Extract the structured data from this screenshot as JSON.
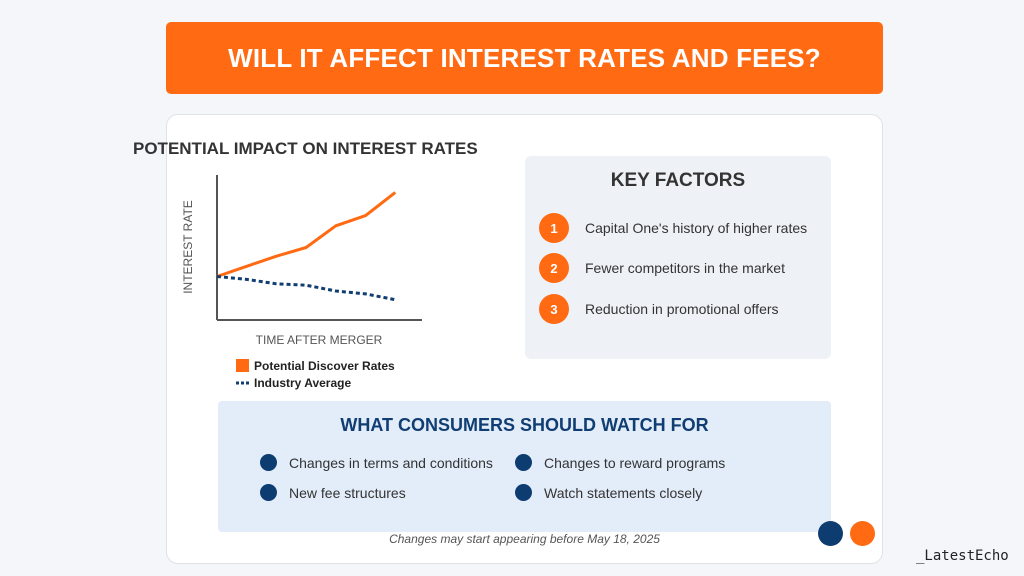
{
  "banner": {
    "title": "WILL IT AFFECT INTEREST RATES AND FEES?"
  },
  "chart_data": {
    "type": "line",
    "title": "POTENTIAL IMPACT ON INTEREST RATES",
    "xlabel": "TIME AFTER MERGER",
    "ylabel": "INTEREST RATE",
    "x": [
      0,
      1,
      2,
      3,
      4,
      5,
      6
    ],
    "xlim": [
      0,
      6.9
    ],
    "ylim": [
      0,
      10
    ],
    "grid": false,
    "legend_placement": "bottom",
    "series": [
      {
        "name": "Potential Discover Rates",
        "values": [
          3.0,
          3.7,
          4.4,
          5.0,
          6.5,
          7.2,
          8.8
        ],
        "style": "solid",
        "color": "#ff6a13"
      },
      {
        "name": "Industry Average",
        "values": [
          3.0,
          2.8,
          2.5,
          2.4,
          2.0,
          1.8,
          1.4
        ],
        "style": "dotted",
        "color": "#103e73"
      }
    ]
  },
  "key_factors": {
    "title": "KEY FACTORS",
    "items": [
      {
        "num": "1",
        "text": "Capital One's history of higher rates"
      },
      {
        "num": "2",
        "text": "Fewer competitors in the market"
      },
      {
        "num": "3",
        "text": "Reduction in promotional offers"
      }
    ]
  },
  "watch": {
    "title": "WHAT CONSUMERS SHOULD WATCH FOR",
    "items": [
      "Changes in terms and conditions",
      "Changes to reward programs",
      "New fee structures",
      "Watch statements closely"
    ]
  },
  "footnote": "Changes may start appearing before May 18, 2025",
  "watermark": "_LatestEcho",
  "colors": {
    "accent": "#ff6a13",
    "navy": "#0d3c70",
    "panel": "#eef2f6",
    "watch_bg": "#e3edfa"
  }
}
